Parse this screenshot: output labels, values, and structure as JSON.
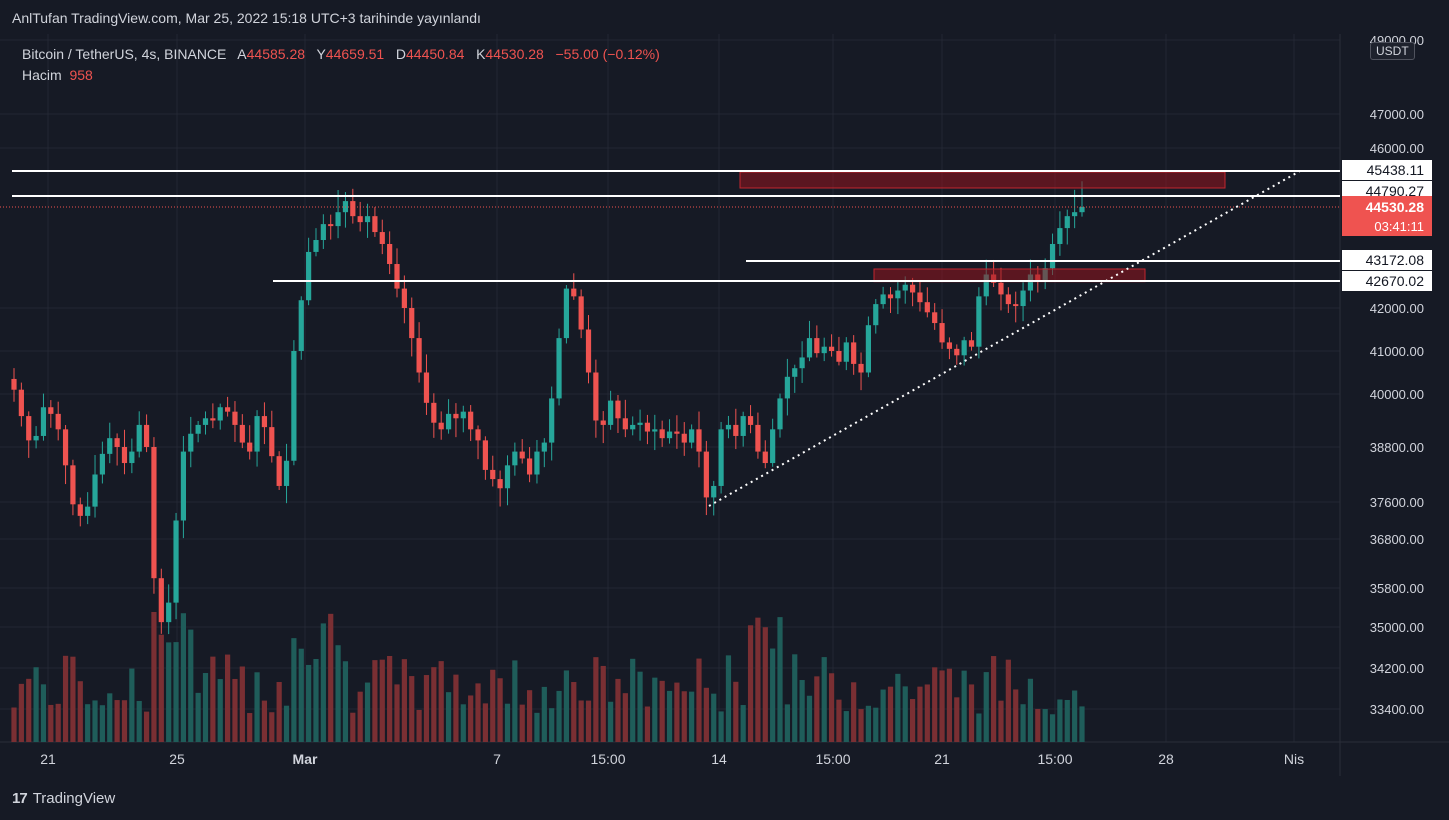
{
  "header": {
    "published": "AnlTufan TradingView.com, Mar 25, 2022 15:18 UTC+3 tarihinde yayınlandı"
  },
  "legend": {
    "symbol": "Bitcoin / TetherUS, 4s, BINANCE",
    "open_label": "A",
    "open": "44585.28",
    "high_label": "Y",
    "high": "44659.51",
    "low_label": "D",
    "low": "44450.84",
    "close_label": "K",
    "close": "44530.28",
    "change": "−55.00 (−0.12%)",
    "volume_label": "Hacim",
    "volume": "958"
  },
  "currency": "USDT",
  "footer": {
    "brand": "TradingView"
  },
  "colors": {
    "bg": "#161a25",
    "up": "#26a69a",
    "down": "#ef5350",
    "grid": "#232733",
    "text": "#d1d4dc",
    "zone": "#8b1a1f"
  },
  "chart_data": {
    "type": "candlestick",
    "timeframe": "4h",
    "y_ticks": [
      49000,
      47000,
      46000,
      42000,
      41000,
      40000,
      38800,
      37600,
      36800,
      35800,
      35000,
      34200,
      33400
    ],
    "x_ticks": [
      "21",
      "25",
      "Mar",
      "7",
      "15:00",
      "14",
      "15:00",
      "21",
      "15:00",
      "28",
      "Nis"
    ],
    "horizontal_levels": [
      45438.11,
      44790.27,
      43172.08,
      42670.02
    ],
    "last_price": {
      "value": "44530.28",
      "countdown": "03:41:11"
    },
    "resistance_zones": [
      {
        "top": 45438.11,
        "bottom": 44790.27
      },
      {
        "top": 43172.08,
        "bottom": 42750
      }
    ],
    "trendline": {
      "from": {
        "x": "14",
        "y": 37500
      },
      "to": {
        "x": "28",
        "y": 45438
      }
    },
    "close_series": [
      40100,
      39500,
      38950,
      39050,
      39700,
      39550,
      39200,
      38400,
      37550,
      37300,
      37500,
      38200,
      38650,
      39000,
      38800,
      38450,
      38700,
      39300,
      38800,
      36000,
      35100,
      35500,
      37200,
      38700,
      39100,
      39300,
      39450,
      39400,
      39700,
      39600,
      39300,
      38900,
      38700,
      39500,
      39250,
      38600,
      37950,
      38500,
      41000,
      42200,
      43400,
      43700,
      44100,
      44050,
      44400,
      44600,
      44300,
      44150,
      44300,
      43900,
      43600,
      43100,
      42500,
      42000,
      41300,
      40500,
      39800,
      39350,
      39200,
      39550,
      39450,
      39600,
      39200,
      38950,
      38300,
      38100,
      37900,
      38400,
      38700,
      38550,
      38200,
      38700,
      38900,
      39900,
      41300,
      42500,
      42300,
      41500,
      40500,
      39400,
      39300,
      39850,
      39450,
      39200,
      39300,
      39350,
      39150,
      39200,
      39000,
      39150,
      39100,
      38900,
      39200,
      38700,
      37700,
      37950,
      39200,
      39300,
      39050,
      39500,
      39300,
      38700,
      38450,
      39200,
      39900,
      40400,
      40600,
      40850,
      41300,
      40950,
      41100,
      41000,
      40750,
      41200,
      40700,
      40500,
      41600,
      42100,
      42350,
      42250,
      42450,
      42600,
      42400,
      42150,
      41900,
      41650,
      41200,
      41050,
      40900,
      41250,
      41100,
      42300,
      42850,
      42650,
      42350,
      42100,
      42050,
      42450,
      42850,
      42700,
      43000,
      43600,
      44000,
      44300,
      44400,
      44530
    ],
    "volume": [
      {
        "unit": "relative"
      }
    ]
  }
}
